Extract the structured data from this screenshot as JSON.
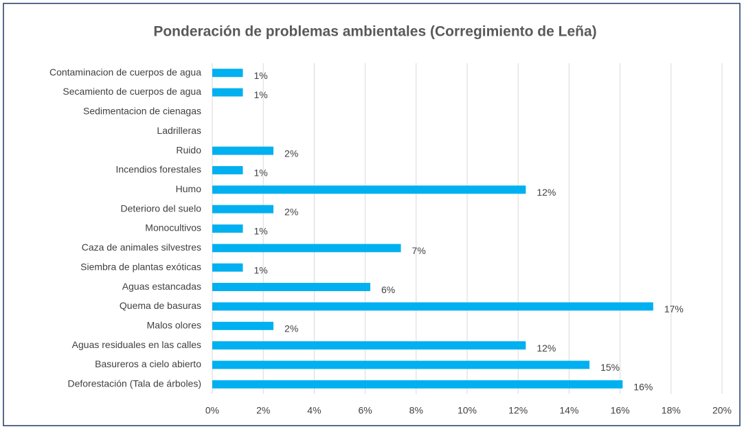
{
  "chart_data": {
    "type": "bar",
    "orientation": "horizontal",
    "title": "Ponderación de problemas ambientales (Corregimiento de Leña)",
    "categories": [
      "Contaminacion de cuerpos de agua",
      "Secamiento de cuerpos de agua",
      "Sedimentacion de cienagas",
      "Ladrilleras",
      "Ruido",
      "Incendios forestales",
      "Humo",
      "Deterioro del suelo",
      "Monocultivos",
      "Caza de animales silvestres",
      "Siembra de plantas exóticas",
      "Aguas estancadas",
      "Quema de basuras",
      "Malos olores",
      "Aguas residuales en las calles",
      "Basureros a cielo abierto",
      "Deforestación (Tala de árboles)"
    ],
    "values": [
      1.2,
      1.2,
      null,
      null,
      2.4,
      1.2,
      12.3,
      2.4,
      1.2,
      7.4,
      1.2,
      6.2,
      17.3,
      2.4,
      12.3,
      14.8,
      16.1
    ],
    "value_labels": [
      "1%",
      "1%",
      null,
      null,
      "2%",
      "1%",
      "12%",
      "2%",
      "1%",
      "7%",
      "1%",
      "6%",
      "17%",
      "2%",
      "12%",
      "15%",
      "16%"
    ],
    "color": "#00b0f0",
    "xlim": [
      0,
      20
    ],
    "xticks": [
      {
        "value": 0,
        "label": "0%"
      },
      {
        "value": 2,
        "label": "2%"
      },
      {
        "value": 4,
        "label": "4%"
      },
      {
        "value": 6,
        "label": "6%"
      },
      {
        "value": 8,
        "label": "8%"
      },
      {
        "value": 10,
        "label": "10%"
      },
      {
        "value": 12,
        "label": "12%"
      },
      {
        "value": 14,
        "label": "14%"
      },
      {
        "value": 16,
        "label": "16%"
      },
      {
        "value": 18,
        "label": "18%"
      },
      {
        "value": 20,
        "label": "20%"
      }
    ],
    "grid": true
  }
}
